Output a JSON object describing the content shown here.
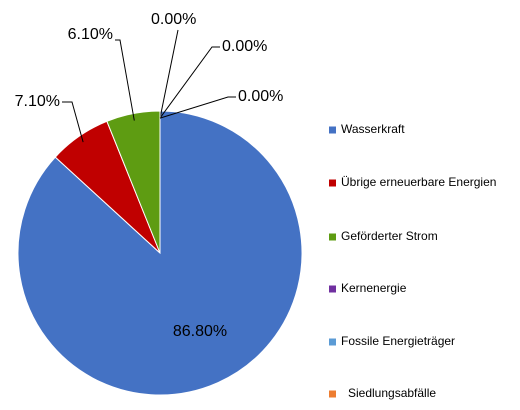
{
  "chart_data": {
    "type": "pie",
    "categories": [
      "Wasserkraft",
      "Übrige erneuerbare Energien",
      "Geförderter Strom",
      "Kernenergie",
      "Fossile Energieträger",
      "Siedlungsabfälle"
    ],
    "values": [
      86.8,
      7.1,
      6.1,
      0,
      0,
      0
    ],
    "value_labels": [
      "86.80%",
      "7.10%",
      "6.10%",
      "0.00%",
      "0.00%",
      "0.00%"
    ],
    "colors": [
      "#4472c4",
      "#c00000",
      "#5e9c12",
      "#7030a0",
      "#5b9bd5",
      "#ed7d31"
    ],
    "legend": "right"
  }
}
